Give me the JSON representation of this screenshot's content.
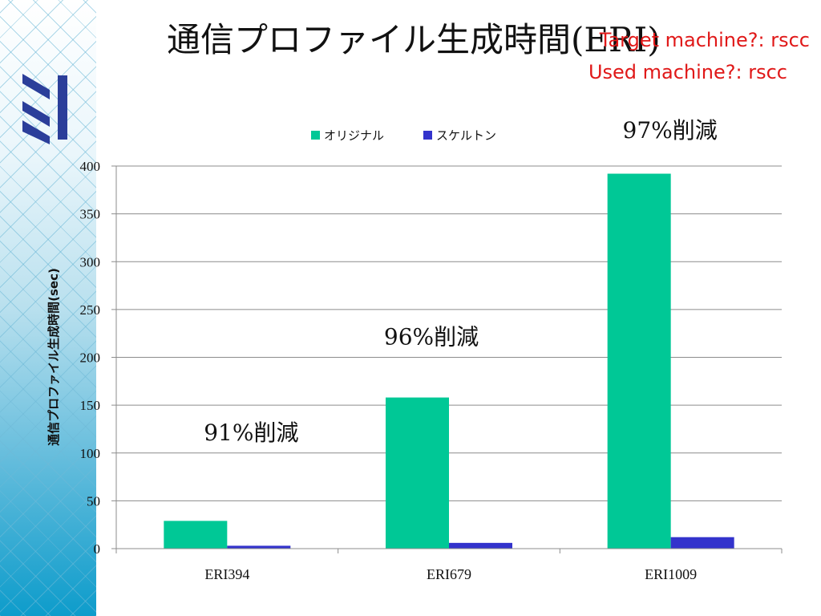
{
  "slide": {
    "title": "通信プロファイル生成時間(ERI)",
    "target_machine": "Target machine?: rscc",
    "used_machine": "Used machine?: rscc"
  },
  "colors": {
    "original": "#00c896",
    "skeleton": "#3333cc",
    "note": "#e01818"
  },
  "chart_data": {
    "type": "bar",
    "categories": [
      "ERI394",
      "ERI679",
      "ERI1009"
    ],
    "series": [
      {
        "name": "オリジナル",
        "values": [
          29,
          158,
          392
        ]
      },
      {
        "name": "スケルトン",
        "values": [
          3,
          6,
          12
        ]
      }
    ],
    "ylabel": "通信プロファイル生成時間(sec)",
    "ylim": [
      0,
      400
    ],
    "yticks": [
      0,
      50,
      100,
      150,
      200,
      250,
      300,
      350,
      400
    ],
    "grid": true,
    "legend_position": "top",
    "annotations": [
      "91%削減",
      "96%削減",
      "97%削減"
    ]
  }
}
